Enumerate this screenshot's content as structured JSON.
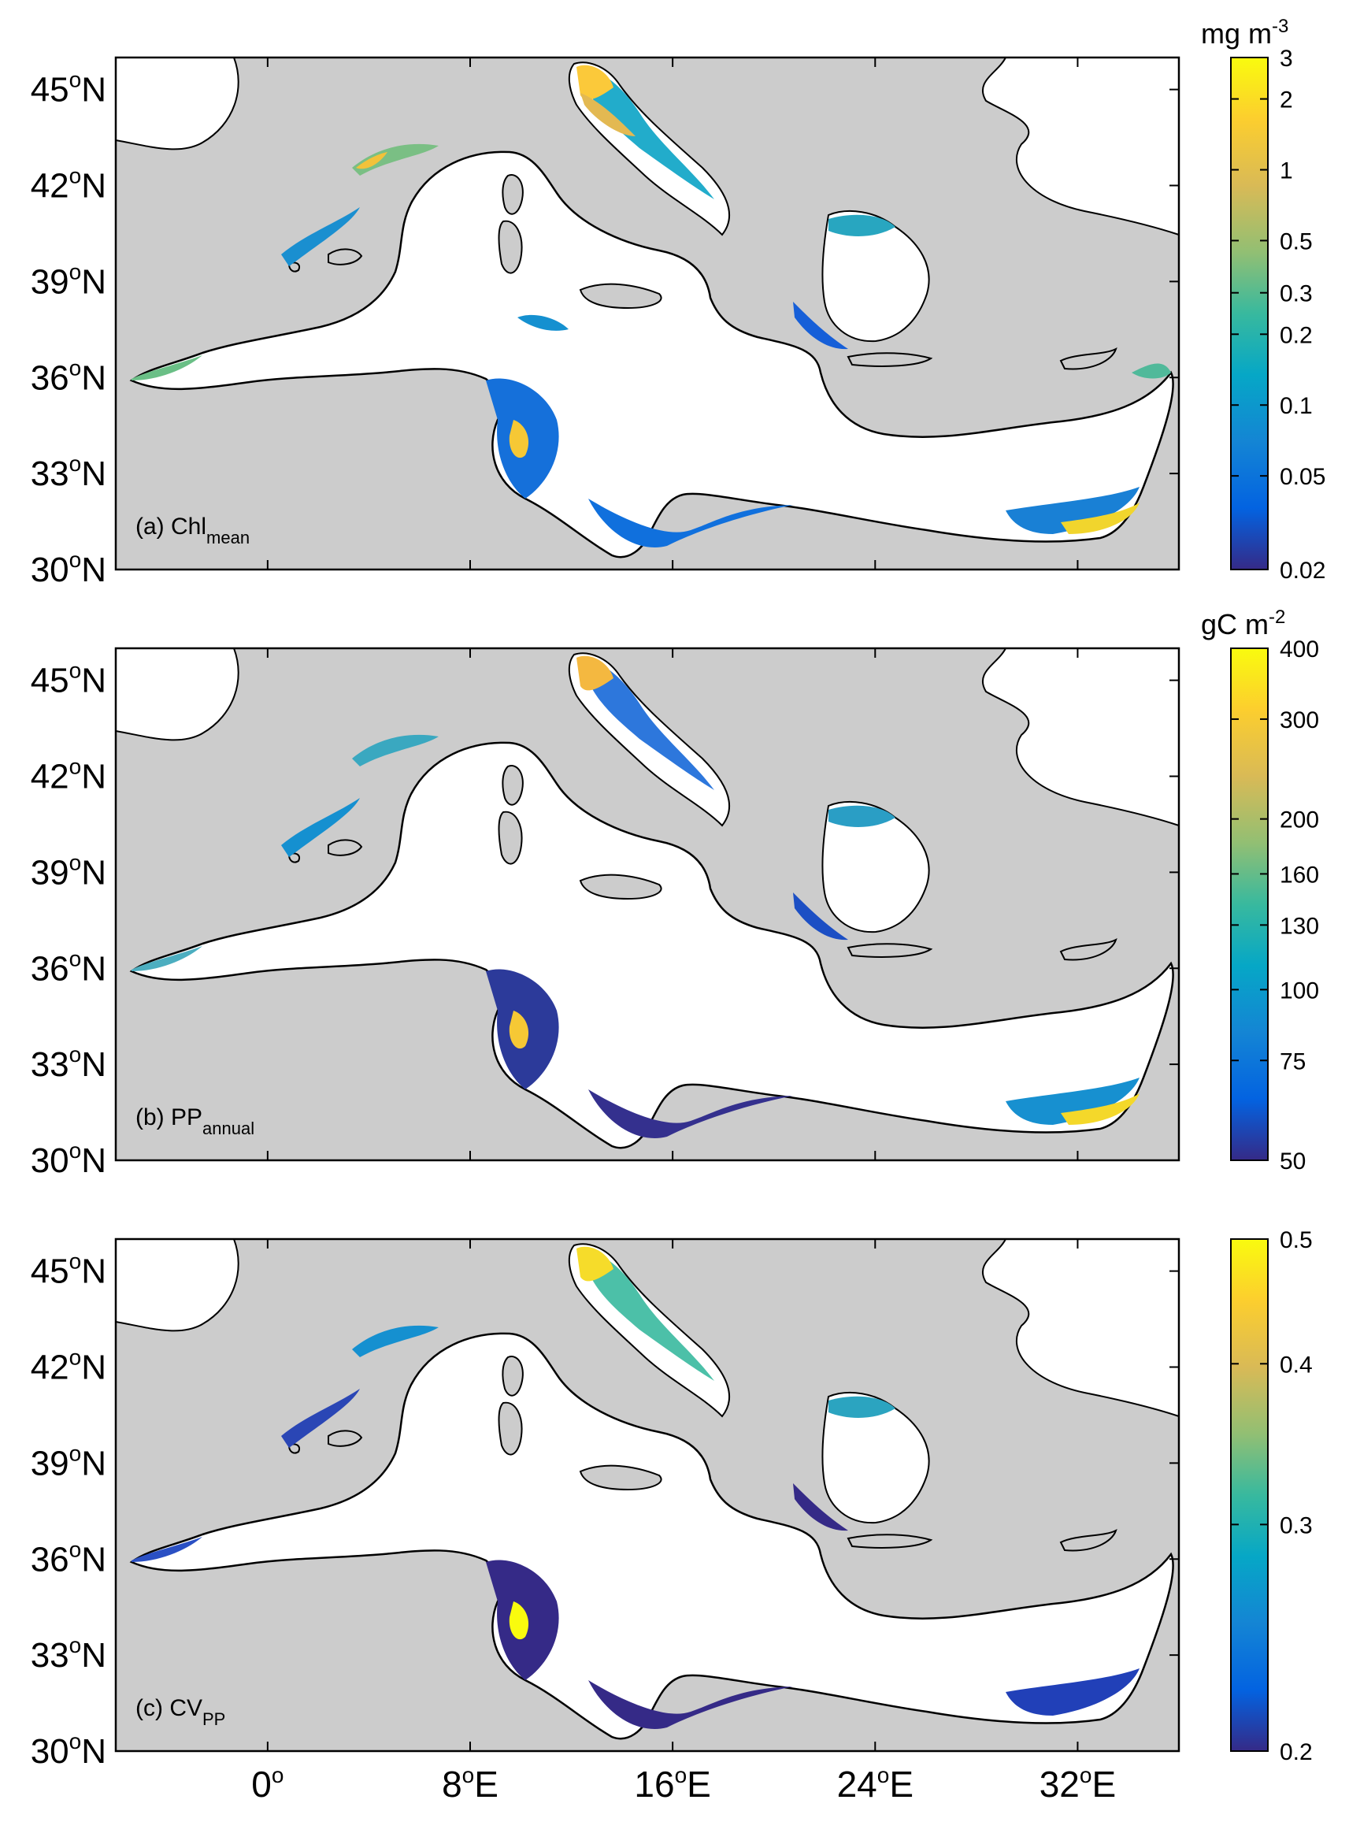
{
  "colors": {
    "sea_open": "#ffffff",
    "land": "#cccccc",
    "coast": "#000000",
    "colormap": [
      "#352a87",
      "#0363e1",
      "#1485d4",
      "#06a7c6",
      "#38b99e",
      "#92bf73",
      "#d9ba56",
      "#fcce2e",
      "#f9fb0e"
    ]
  },
  "y_axis_labels": [
    {
      "deg": "45",
      "sup": "o",
      "hem": "N"
    },
    {
      "deg": "42",
      "sup": "o",
      "hem": "N"
    },
    {
      "deg": "39",
      "sup": "o",
      "hem": "N"
    },
    {
      "deg": "36",
      "sup": "o",
      "hem": "N"
    },
    {
      "deg": "33",
      "sup": "o",
      "hem": "N"
    },
    {
      "deg": "30",
      "sup": "o",
      "hem": "N"
    }
  ],
  "x_axis_labels": [
    {
      "deg": "0",
      "sup": "o",
      "hem": ""
    },
    {
      "deg": "8",
      "sup": "o",
      "hem": "E"
    },
    {
      "deg": "16",
      "sup": "o",
      "hem": "E"
    },
    {
      "deg": "24",
      "sup": "o",
      "hem": "E"
    },
    {
      "deg": "32",
      "sup": "o",
      "hem": "E"
    }
  ],
  "panels": [
    {
      "label_main": "(a) Chl",
      "label_sub": "mean",
      "unit_main": "mg m",
      "unit_sup": "-3",
      "colorbar_ticks": [
        "3",
        "2",
        "1",
        "0.5",
        "0.3",
        "0.2",
        "0.1",
        "0.05",
        "0.02"
      ],
      "colorbar_values": [
        3,
        2,
        1,
        0.5,
        0.3,
        0.2,
        0.1,
        0.05,
        0.02
      ],
      "colorbar_scale": "log",
      "colorbar_range": [
        0.02,
        3
      ]
    },
    {
      "label_main": "(b) PP",
      "label_sub": "annual",
      "unit_main": "gC m",
      "unit_sup": "-2",
      "colorbar_ticks": [
        "400",
        "300",
        "200",
        "160",
        "130",
        "100",
        "75",
        "50"
      ],
      "colorbar_values": [
        400,
        300,
        200,
        160,
        130,
        100,
        75,
        50
      ],
      "colorbar_scale": "log",
      "colorbar_range": [
        50,
        400
      ]
    },
    {
      "label_main": "(c) CV",
      "label_sub": "PP",
      "unit_main": "",
      "unit_sup": "",
      "colorbar_ticks": [
        "0.5",
        "0.4",
        "0.3",
        "0.2"
      ],
      "colorbar_values": [
        0.5,
        0.4,
        0.3,
        0.2
      ],
      "colorbar_scale": "log",
      "colorbar_range": [
        0.2,
        0.5
      ]
    }
  ]
}
